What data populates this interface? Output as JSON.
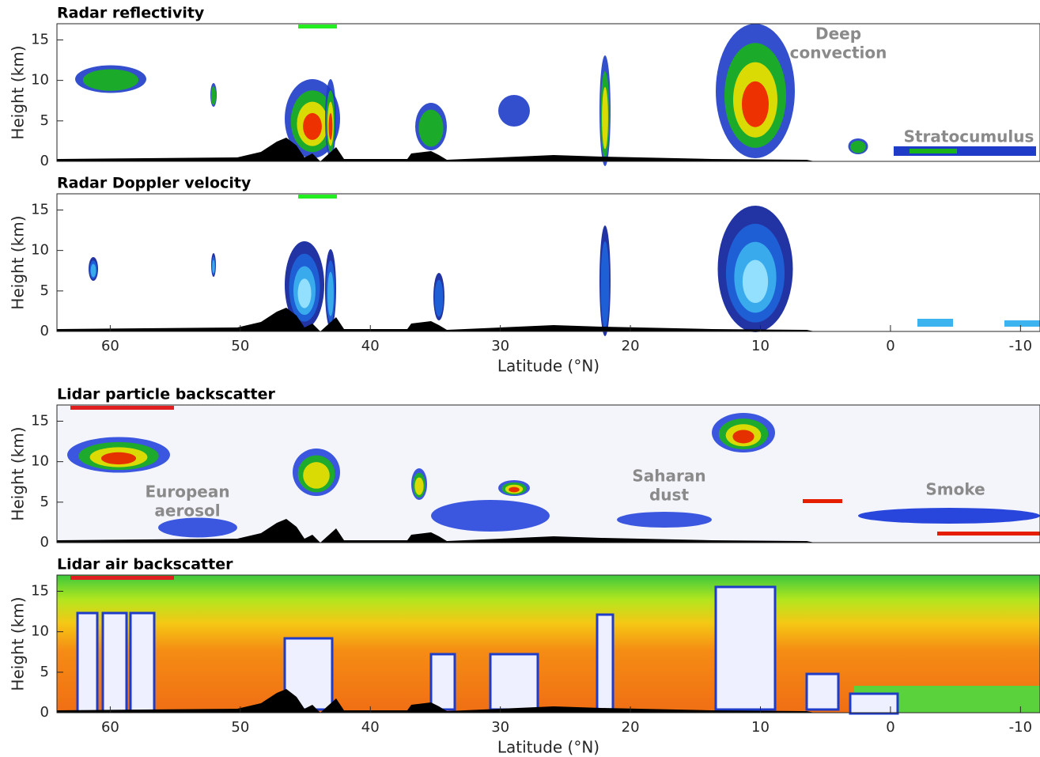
{
  "chart_data": [
    {
      "type": "curtain",
      "title": "Radar reflectivity",
      "ylabel": "Height (km)",
      "ylim": [
        0,
        17
      ],
      "yticks": [
        0,
        5,
        10,
        15
      ],
      "annotations": [
        {
          "lines": [
            "Deep",
            "convection"
          ]
        },
        {
          "lines": [
            "Stratocumulus"
          ]
        }
      ]
    },
    {
      "type": "curtain",
      "title": "Radar Doppler velocity",
      "ylabel": "Height (km)",
      "ylim": [
        0,
        17
      ],
      "yticks": [
        0,
        5,
        10,
        15
      ],
      "xlabel": "Latitude (°N)",
      "xlim": [
        64.1,
        -11.5
      ],
      "xticks": [
        60,
        50,
        40,
        30,
        20,
        10,
        0,
        -10
      ]
    },
    {
      "type": "curtain",
      "title": "Lidar particle backscatter",
      "ylabel": "Height (km)",
      "ylim": [
        0,
        17
      ],
      "yticks": [
        0,
        5,
        10,
        15
      ],
      "annotations": [
        {
          "lines": [
            "European",
            "aerosol"
          ]
        },
        {
          "lines": [
            "Saharan",
            "dust"
          ]
        },
        {
          "lines": [
            "Smoke"
          ]
        }
      ]
    },
    {
      "type": "curtain",
      "title": "Lidar air backscatter",
      "ylabel": "Height (km)",
      "ylim": [
        0,
        17
      ],
      "yticks": [
        0,
        5,
        10,
        15
      ],
      "xlabel": "Latitude (°N)",
      "xlim": [
        64.1,
        -11.5
      ],
      "xticks": [
        60,
        50,
        40,
        30,
        20,
        10,
        0,
        -10
      ]
    }
  ]
}
